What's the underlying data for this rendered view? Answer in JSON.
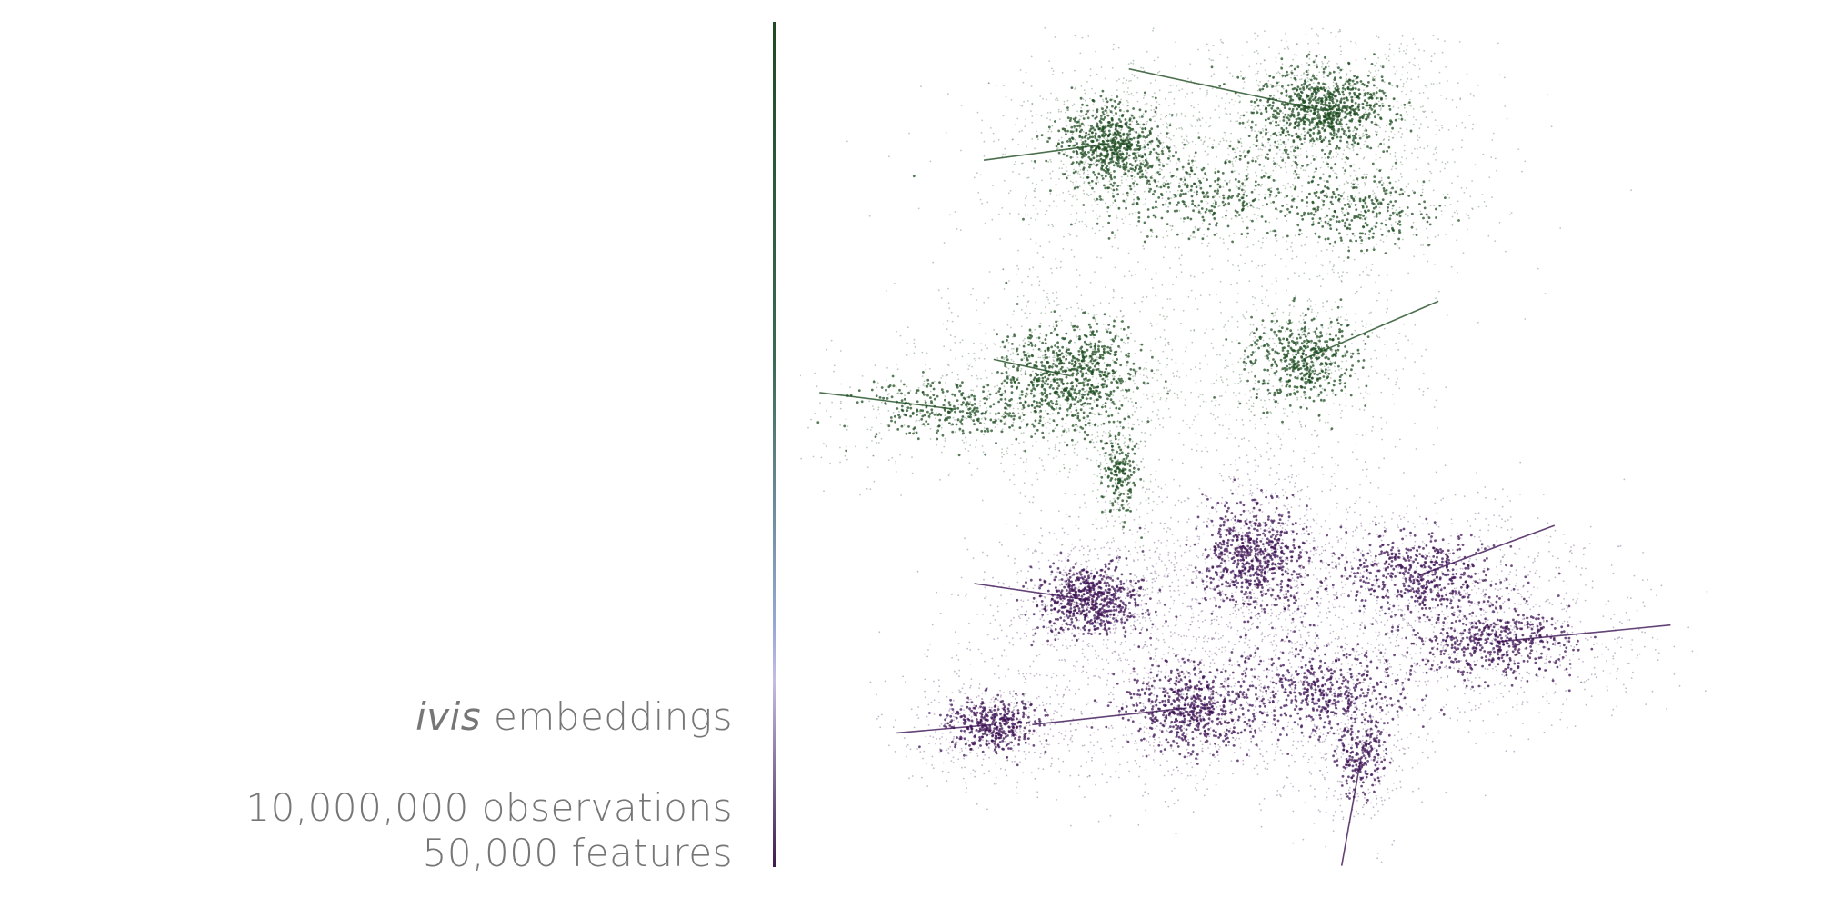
{
  "caption": {
    "method_italic": "ivis",
    "method_rest": " embeddings",
    "observations": "10,000,000 observations",
    "features": "50,000 features"
  },
  "colors": {
    "cluster_a": "#1f4d22",
    "cluster_b": "#3d1354",
    "text": "#767676"
  },
  "chart_data": {
    "type": "scatter",
    "title": "",
    "xlabel": "",
    "ylabel": "",
    "grid": false,
    "axes_visible": false,
    "legend": "none",
    "series": [
      {
        "color": "#1f4d22",
        "clusters": [
          {
            "cx": 10.2,
            "cy": 8.6,
            "sx": 0.75,
            "sy": 0.55,
            "weight": 1.2,
            "tail": [
              8.2,
              9.1
            ]
          },
          {
            "cx": 8.0,
            "cy": 8.2,
            "sx": 0.55,
            "sy": 0.5,
            "weight": 0.9,
            "tail": [
              6.7,
              8.0
            ]
          },
          {
            "cx": 9.0,
            "cy": 7.6,
            "sx": 1.4,
            "sy": 0.6,
            "weight": 0.5
          },
          {
            "cx": 10.0,
            "cy": 5.6,
            "sx": 0.6,
            "sy": 0.6,
            "weight": 0.7,
            "tail": [
              11.4,
              6.3
            ]
          },
          {
            "cx": 7.6,
            "cy": 5.4,
            "sx": 0.75,
            "sy": 0.7,
            "weight": 1.0,
            "tail": [
              6.8,
              5.6
            ]
          },
          {
            "cx": 6.4,
            "cy": 5.0,
            "sx": 1.1,
            "sy": 0.4,
            "weight": 0.45,
            "tail": [
              5.0,
              5.2
            ]
          },
          {
            "cx": 8.1,
            "cy": 4.2,
            "sx": 0.2,
            "sy": 0.55,
            "weight": 0.25
          },
          {
            "cx": 10.6,
            "cy": 7.4,
            "sx": 0.8,
            "sy": 0.5,
            "weight": 0.35
          }
        ]
      },
      {
        "color": "#3d1354",
        "clusters": [
          {
            "cx": 9.5,
            "cy": 3.2,
            "sx": 0.6,
            "sy": 0.7,
            "weight": 1.0
          },
          {
            "cx": 7.8,
            "cy": 2.7,
            "sx": 0.6,
            "sy": 0.45,
            "weight": 0.9,
            "tail": [
              6.6,
              2.9
            ]
          },
          {
            "cx": 11.2,
            "cy": 3.0,
            "sx": 0.9,
            "sy": 0.55,
            "weight": 0.8,
            "tail": [
              12.6,
              3.6
            ]
          },
          {
            "cx": 12.0,
            "cy": 2.2,
            "sx": 0.9,
            "sy": 0.45,
            "weight": 0.7,
            "tail": [
              13.8,
              2.4
            ]
          },
          {
            "cx": 8.8,
            "cy": 1.4,
            "sx": 0.7,
            "sy": 0.55,
            "weight": 0.8,
            "tail": [
              7.2,
              1.2
            ]
          },
          {
            "cx": 10.2,
            "cy": 1.6,
            "sx": 1.0,
            "sy": 0.6,
            "weight": 0.7
          },
          {
            "cx": 6.8,
            "cy": 1.2,
            "sx": 0.5,
            "sy": 0.35,
            "weight": 0.6,
            "tail": [
              5.8,
              1.1
            ]
          },
          {
            "cx": 10.6,
            "cy": 0.8,
            "sx": 0.3,
            "sy": 0.5,
            "weight": 0.3,
            "tail": [
              10.4,
              -0.5
            ]
          }
        ]
      }
    ]
  }
}
